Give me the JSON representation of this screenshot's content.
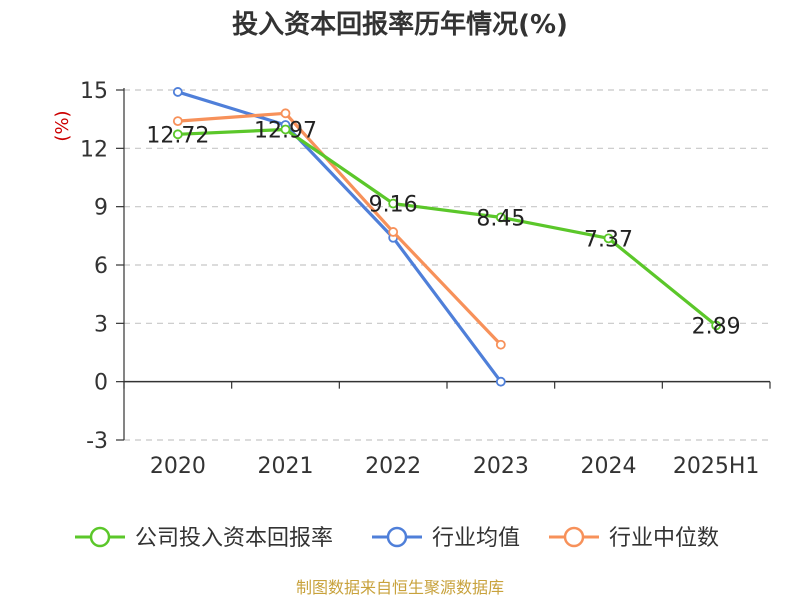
{
  "chart_data": {
    "type": "line",
    "title": "投入资本回报率历年情况(%)",
    "ylabel": "(%)",
    "categories": [
      "2020",
      "2021",
      "2022",
      "2023",
      "2024",
      "2025H1"
    ],
    "ylim": [
      -3,
      15
    ],
    "yticks": [
      15,
      12,
      9,
      6,
      3,
      0,
      -3
    ],
    "grid": true,
    "legend_position": "bottom",
    "series": [
      {
        "name": "公司投入资本回报率",
        "color": "#5bc72a",
        "values": [
          12.72,
          12.97,
          9.16,
          8.45,
          7.37,
          2.89
        ],
        "labels": [
          "12.72",
          "12.97",
          "9.16",
          "8.45",
          "7.37",
          "2.89"
        ]
      },
      {
        "name": "行业均值",
        "color": "#4f7fd9",
        "values": [
          14.9,
          13.2,
          7.4,
          0.0,
          null,
          null
        ]
      },
      {
        "name": "行业中位数",
        "color": "#f7915a",
        "values": [
          13.4,
          13.8,
          7.7,
          1.9,
          null,
          null
        ]
      }
    ]
  },
  "source": "制图数据来自恒生聚源数据库"
}
